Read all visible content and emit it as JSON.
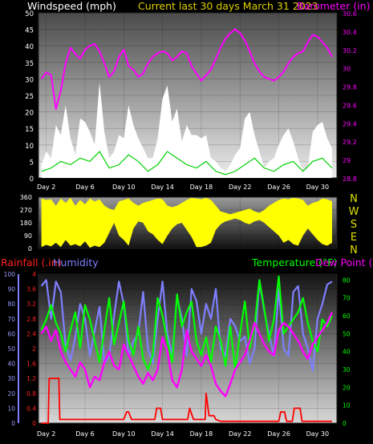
{
  "panel1": {
    "title": "Current last 30 days March 31 2023",
    "left_label": "Windspeed (mph)",
    "right_label": "Barometer (in)"
  },
  "panel2": {
    "compass": [
      "N",
      "W",
      "S",
      "E",
      "N"
    ]
  },
  "panel3": {
    "left_label_1": "Rainfall (.in)",
    "left_label_2": "Humidity",
    "right_label_1": "Temperature (°F)",
    "right_label_2": "Dew Point (°F)"
  },
  "colors": {
    "windspeed": "#ffffff",
    "wind_avg": "#00d000",
    "barometer": "#ff00ff",
    "direction": "#ffff00",
    "rainfall": "#ff0000",
    "humidity": "#7f7fff",
    "temperature": "#00ff00",
    "dewpoint": "#ff00ff"
  },
  "chart_data": [
    {
      "type": "area",
      "name": "wind-barometer",
      "x_tick_labels": [
        "Day 2",
        "Day 6",
        "Day 10",
        "Day 14",
        "Day 18",
        "Day 22",
        "Day 26",
        "Day 30"
      ],
      "x_tick_days": [
        2,
        6,
        10,
        14,
        18,
        22,
        26,
        30
      ],
      "xlim": [
        1.2,
        32
      ],
      "y_left": {
        "ylim": [
          0,
          50
        ],
        "ticks": [
          0,
          5,
          10,
          15,
          20,
          25,
          30,
          35,
          40,
          45,
          50
        ]
      },
      "y_right": {
        "ylim": [
          28.8,
          30.6
        ],
        "tick_values": [
          28.8,
          29,
          29.2,
          29.4,
          29.6,
          29.8,
          30,
          30.2,
          30.4,
          30.6
        ],
        "tick_labels": [
          "28.8",
          "29",
          "29.2",
          "29.4",
          "29.6",
          "29.8",
          "30",
          "30.2",
          "30.4",
          "30.6"
        ]
      },
      "series": [
        {
          "key": "gust",
          "x": [
            1.5,
            2,
            2.5,
            3,
            3.5,
            4,
            4.5,
            5,
            5.5,
            6,
            6.5,
            7,
            7.5,
            8,
            8.5,
            9,
            9.5,
            10,
            10.5,
            11,
            11.5,
            12,
            12.5,
            13,
            13.5,
            14,
            14.5,
            15,
            15.5,
            16,
            16.5,
            17,
            17.5,
            18,
            18.5,
            19,
            19.5,
            20,
            20.5,
            21,
            21.5,
            22,
            22.5,
            23,
            23.5,
            24,
            24.5,
            25,
            25.5,
            26,
            26.5,
            27,
            27.5,
            28,
            28.5,
            29,
            29.5,
            30,
            30.5,
            31,
            31.5
          ],
          "values": [
            4,
            8,
            6,
            16,
            13,
            22,
            12,
            7,
            18,
            17,
            14,
            10,
            29,
            14,
            6,
            8,
            13,
            12,
            22,
            16,
            12,
            9,
            6,
            6,
            12,
            24,
            28,
            17,
            21,
            11,
            16,
            13,
            13,
            12,
            13,
            6,
            5,
            3,
            2,
            4,
            7,
            9,
            18,
            20,
            13,
            8,
            3,
            5,
            6,
            10,
            13,
            15,
            11,
            6,
            2,
            3,
            14,
            16,
            17,
            12,
            9
          ]
        },
        {
          "key": "avg",
          "x": [
            1.5,
            2.5,
            3.5,
            4.5,
            5.5,
            6.5,
            7.5,
            8.5,
            9.5,
            10.5,
            11.5,
            12.5,
            13.5,
            14.5,
            15.5,
            16.5,
            17.5,
            18.5,
            19.5,
            20.5,
            21.5,
            22.5,
            23.5,
            24.5,
            25.5,
            26.5,
            27.5,
            28.5,
            29.5,
            30.5,
            31.5
          ],
          "values": [
            2,
            3,
            5,
            4,
            6,
            5,
            8,
            3,
            4,
            7,
            5,
            2,
            4,
            8,
            6,
            4,
            3,
            5,
            2,
            1,
            2,
            4,
            6,
            3,
            2,
            4,
            5,
            2,
            5,
            6,
            3
          ]
        },
        {
          "key": "barometer",
          "x": [
            1.5,
            2,
            2.5,
            3,
            3.5,
            4,
            4.5,
            5,
            5.5,
            6,
            6.5,
            7,
            7.5,
            8,
            8.5,
            9,
            9.5,
            10,
            10.5,
            11,
            11.5,
            12,
            12.5,
            13,
            13.5,
            14,
            14.5,
            15,
            15.5,
            16,
            16.5,
            17,
            17.5,
            18,
            18.5,
            19,
            19.5,
            20,
            20.5,
            21,
            21.5,
            22,
            22.5,
            23,
            23.5,
            24,
            24.5,
            25,
            25.5,
            26,
            26.5,
            27,
            27.5,
            28,
            28.5,
            29,
            29.5,
            30,
            30.5,
            31,
            31.5
          ],
          "values": [
            29.88,
            29.95,
            29.92,
            29.55,
            29.75,
            30.05,
            30.22,
            30.15,
            30.1,
            30.2,
            30.24,
            30.26,
            30.18,
            30.05,
            29.9,
            29.96,
            30.12,
            30.2,
            30.02,
            29.98,
            29.9,
            29.94,
            30.05,
            30.12,
            30.16,
            30.18,
            30.16,
            30.08,
            30.12,
            30.18,
            30.16,
            30.02,
            29.94,
            29.86,
            29.92,
            29.98,
            30.1,
            30.22,
            30.32,
            30.38,
            30.42,
            30.38,
            30.3,
            30.18,
            30.05,
            29.96,
            29.9,
            29.88,
            29.86,
            29.9,
            29.96,
            30.05,
            30.12,
            30.16,
            30.18,
            30.28,
            30.36,
            30.34,
            30.28,
            30.22,
            30.12
          ]
        }
      ]
    },
    {
      "type": "area",
      "name": "wind-direction",
      "x_tick_days": [
        2,
        6,
        10,
        14,
        18,
        22,
        26,
        30
      ],
      "xlim": [
        1.2,
        32
      ],
      "ylim": [
        0,
        360
      ],
      "y_ticks": [
        0,
        90,
        180,
        270,
        360
      ],
      "series": [
        {
          "key": "direction",
          "x": [
            1.5,
            2,
            2.5,
            3,
            3.5,
            4,
            4.5,
            5,
            5.5,
            6,
            6.5,
            7,
            7.5,
            8,
            8.5,
            9,
            9.5,
            10,
            10.5,
            11,
            11.5,
            12,
            12.5,
            13,
            13.5,
            14,
            14.5,
            15,
            15.5,
            16,
            16.5,
            17,
            17.5,
            18,
            18.5,
            19,
            19.5,
            20,
            20.5,
            21,
            21.5,
            22,
            22.5,
            23,
            23.5,
            24,
            24.5,
            25,
            25.5,
            26,
            26.5,
            27,
            27.5,
            28,
            28.5,
            29,
            29.5,
            30,
            30.5,
            31,
            31.5
          ],
          "low": [
            10,
            25,
            15,
            40,
            10,
            60,
            20,
            30,
            15,
            50,
            5,
            20,
            10,
            40,
            110,
            180,
            90,
            60,
            20,
            140,
            190,
            180,
            120,
            100,
            60,
            30,
            90,
            140,
            170,
            180,
            130,
            80,
            10,
            10,
            20,
            40,
            130,
            170,
            190,
            200,
            210,
            200,
            180,
            170,
            190,
            200,
            180,
            150,
            120,
            90,
            40,
            60,
            30,
            20,
            90,
            140,
            100,
            60,
            30,
            20,
            40
          ],
          "high": [
            350,
            340,
            345,
            300,
            350,
            320,
            355,
            300,
            340,
            310,
            350,
            330,
            345,
            300,
            280,
            270,
            330,
            340,
            350,
            320,
            300,
            320,
            330,
            340,
            350,
            345,
            300,
            290,
            300,
            320,
            340,
            355,
            350,
            345,
            355,
            340,
            300,
            260,
            250,
            240,
            250,
            260,
            270,
            280,
            260,
            250,
            270,
            300,
            320,
            340,
            350,
            345,
            355,
            350,
            340,
            300,
            320,
            330,
            350,
            345,
            330
          ]
        }
      ]
    },
    {
      "type": "line",
      "name": "rain-humidity-temperature",
      "x_tick_days": [
        2,
        6,
        10,
        14,
        18,
        22,
        26,
        30
      ],
      "xlim": [
        1.2,
        32
      ],
      "y_rain": {
        "ylim": [
          0,
          4
        ],
        "tick_values": [
          0,
          0.4,
          0.8,
          1.2,
          1.6,
          2,
          2.4,
          2.8,
          3.2,
          3.6,
          4
        ],
        "tick_labels": [
          "0",
          "0.4",
          "0.8",
          "1.2",
          "1.6",
          "2",
          "2.4",
          "2.8",
          "3.2",
          "3.6",
          "4"
        ]
      },
      "y_humidity": {
        "ylim": [
          0,
          100
        ],
        "ticks": [
          0,
          10,
          20,
          30,
          40,
          50,
          60,
          70,
          80,
          90,
          100
        ]
      },
      "y_temp": {
        "ylim": [
          0,
          83.3
        ],
        "ticks": [
          0,
          10,
          20,
          30,
          40,
          50,
          60,
          70,
          80
        ]
      },
      "series": [
        {
          "key": "rainfall",
          "x": [
            1.5,
            2.2,
            2.3,
            3.3,
            3.4,
            5,
            10,
            10.3,
            10.5,
            10.8,
            12,
            12.5,
            13.2,
            13.4,
            13.8,
            14,
            16.6,
            16.8,
            17.2,
            18.4,
            18.5,
            18.8,
            19.3,
            19.5,
            20,
            26,
            26.2,
            26.6,
            26.8,
            27.4,
            27.6,
            27.8,
            28.2,
            28.4,
            31.5
          ],
          "values": [
            0,
            0,
            1.2,
            1.2,
            0.1,
            0.1,
            0.1,
            0.3,
            0.3,
            0.1,
            0.1,
            0.1,
            0.1,
            0.4,
            0.4,
            0.1,
            0.1,
            0.4,
            0.1,
            0.1,
            0.8,
            0.2,
            0.2,
            0.1,
            0.05,
            0.05,
            0.3,
            0.3,
            0.05,
            0.05,
            0.4,
            0.4,
            0.4,
            0.05,
            0.05
          ]
        },
        {
          "key": "humidity",
          "x": [
            1.5,
            2,
            2.5,
            3,
            3.5,
            4,
            4.5,
            5,
            5.5,
            6,
            6.5,
            7,
            7.5,
            8,
            8.5,
            9,
            9.5,
            10,
            10.5,
            11,
            11.5,
            12,
            12.5,
            13,
            13.5,
            14,
            14.5,
            15,
            15.5,
            16,
            16.5,
            17,
            17.5,
            18,
            18.5,
            19,
            19.5,
            20,
            20.5,
            21,
            21.5,
            22,
            22.5,
            23,
            23.5,
            24,
            24.5,
            25,
            25.5,
            26,
            26.5,
            27,
            27.5,
            28,
            28.5,
            29,
            29.5,
            30,
            30.5,
            31,
            31.5
          ],
          "values": [
            92,
            96,
            70,
            95,
            88,
            52,
            42,
            58,
            80,
            70,
            45,
            62,
            78,
            40,
            45,
            72,
            95,
            80,
            45,
            55,
            60,
            88,
            50,
            40,
            70,
            95,
            60,
            45,
            85,
            70,
            45,
            90,
            82,
            60,
            80,
            70,
            90,
            50,
            45,
            70,
            65,
            55,
            58,
            40,
            50,
            95,
            75,
            60,
            45,
            90,
            50,
            45,
            88,
            92,
            60,
            50,
            35,
            70,
            80,
            93,
            95
          ]
        },
        {
          "key": "temperature",
          "x": [
            1.5,
            2,
            2.5,
            3,
            3.5,
            4,
            4.5,
            5,
            5.5,
            6,
            6.5,
            7,
            7.5,
            8,
            8.5,
            9,
            9.5,
            10,
            10.5,
            11,
            11.5,
            12,
            12.5,
            13,
            13.5,
            14,
            14.5,
            15,
            15.5,
            16,
            16.5,
            17,
            17.5,
            18,
            18.5,
            19,
            19.5,
            20,
            20.5,
            21,
            21.5,
            22,
            22.5,
            23,
            23.5,
            24,
            24.5,
            25,
            25.5,
            26,
            26.5,
            27,
            27.5,
            28,
            28.5,
            29,
            29.5,
            30,
            30.5,
            31,
            31.5
          ],
          "values": [
            52,
            58,
            66,
            56,
            50,
            40,
            52,
            62,
            42,
            66,
            58,
            46,
            34,
            52,
            70,
            44,
            56,
            68,
            46,
            38,
            54,
            36,
            30,
            38,
            70,
            60,
            46,
            34,
            72,
            54,
            62,
            68,
            46,
            38,
            48,
            34,
            54,
            46,
            32,
            54,
            30,
            50,
            68,
            42,
            54,
            80,
            64,
            46,
            58,
            82,
            50,
            54,
            58,
            62,
            70,
            56,
            46,
            40,
            58,
            54,
            60
          ]
        },
        {
          "key": "dewpoint",
          "x": [
            1.5,
            2,
            2.5,
            3,
            3.5,
            4,
            4.5,
            5,
            5.5,
            6,
            6.5,
            7,
            7.5,
            8,
            8.5,
            9,
            9.5,
            10,
            10.5,
            11,
            11.5,
            12,
            12.5,
            13,
            13.5,
            14,
            14.5,
            15,
            15.5,
            16,
            16.5,
            17,
            17.5,
            18,
            18.5,
            19,
            19.5,
            20,
            20.5,
            21,
            21.5,
            22,
            22.5,
            23,
            23.5,
            24,
            24.5,
            25,
            25.5,
            26,
            26.5,
            27,
            27.5,
            28,
            28.5,
            29,
            29.5,
            30,
            30.5,
            31,
            31.5
          ],
          "values": [
            50,
            54,
            46,
            52,
            40,
            34,
            30,
            26,
            34,
            30,
            20,
            26,
            24,
            34,
            40,
            32,
            30,
            44,
            38,
            32,
            26,
            22,
            28,
            24,
            30,
            48,
            40,
            24,
            20,
            30,
            52,
            40,
            36,
            32,
            38,
            32,
            22,
            18,
            15,
            22,
            30,
            34,
            38,
            46,
            56,
            50,
            44,
            40,
            38,
            52,
            56,
            54,
            50,
            46,
            40,
            36,
            44,
            48,
            52,
            56,
            62
          ]
        }
      ]
    }
  ]
}
